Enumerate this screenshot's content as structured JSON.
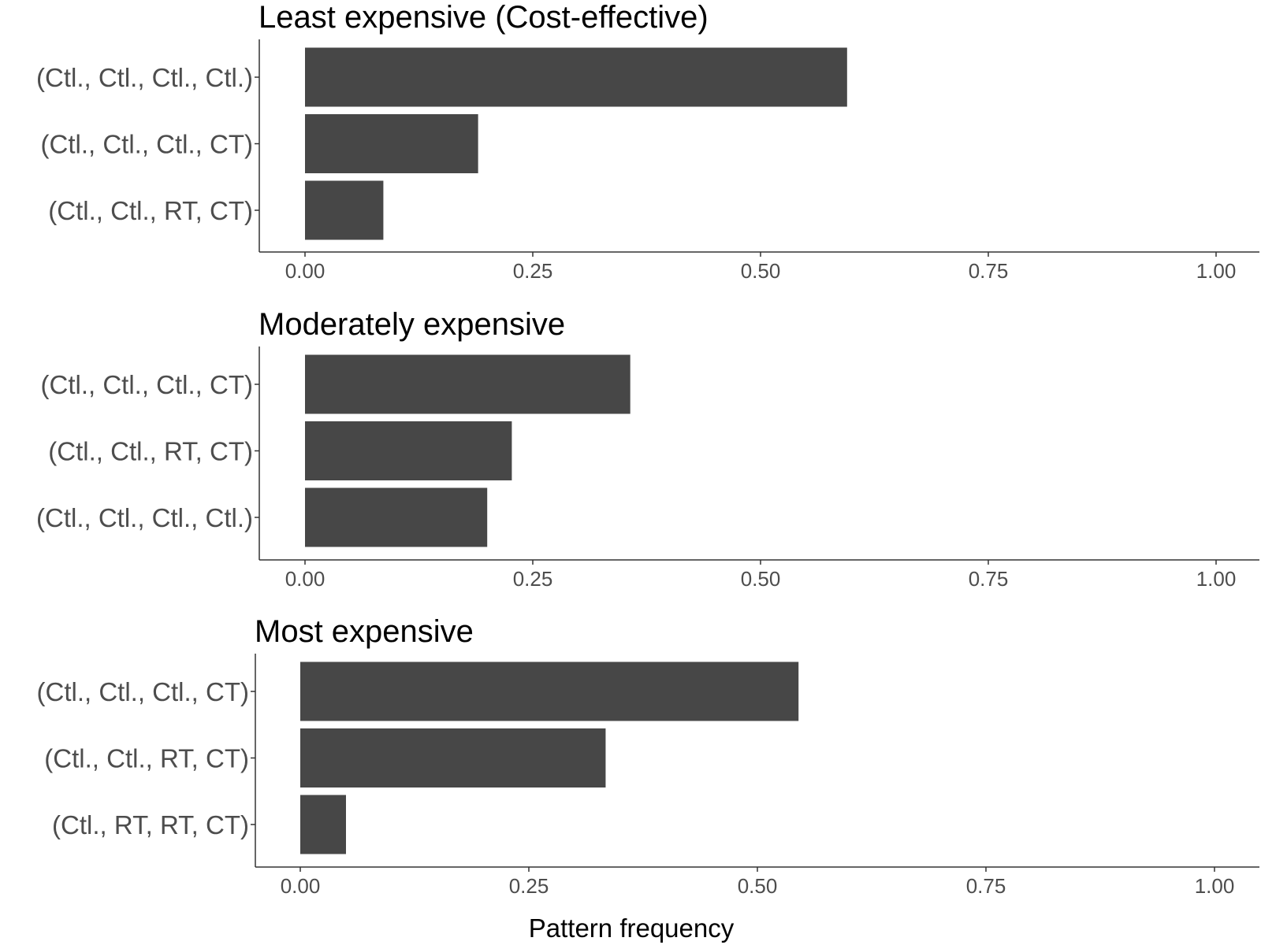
{
  "chart_data": {
    "type": "bar",
    "orientation": "horizontal",
    "xlabel": "Pattern frequency",
    "xlim": [
      0,
      1
    ],
    "x_ticks": [
      "0.00",
      "0.25",
      "0.50",
      "0.75",
      "1.00"
    ],
    "x_tick_values": [
      0,
      0.25,
      0.5,
      0.75,
      1.0
    ],
    "bar_color": "#474747",
    "axis_color": "#333333",
    "label_color": "#4d4d4d",
    "grid": false,
    "panels": [
      {
        "title": "Least expensive (Cost-effective)",
        "categories": [
          "(Ctl., Ctl., Ctl., Ctl.)",
          "(Ctl., Ctl., Ctl., CT)",
          "(Ctl., Ctl., RT, CT)"
        ],
        "values": [
          0.595,
          0.19,
          0.086
        ]
      },
      {
        "title": "Moderately expensive",
        "categories": [
          "(Ctl., Ctl., Ctl., CT)",
          "(Ctl., Ctl., RT, CT)",
          "(Ctl., Ctl., Ctl., Ctl.)"
        ],
        "values": [
          0.357,
          0.227,
          0.2
        ]
      },
      {
        "title": "Most expensive",
        "categories": [
          "(Ctl., Ctl., Ctl., CT)",
          "(Ctl., Ctl., RT, CT)",
          "(Ctl., RT, RT, CT)"
        ],
        "values": [
          0.545,
          0.334,
          0.05
        ]
      }
    ]
  }
}
